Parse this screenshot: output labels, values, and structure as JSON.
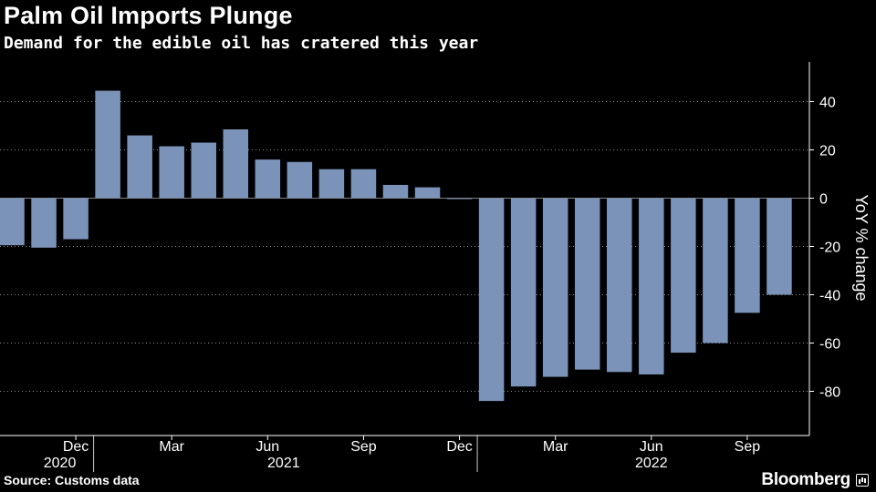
{
  "header": {
    "title": "Palm Oil Imports Plunge",
    "subtitle": "Demand for the edible oil has cratered this year"
  },
  "footer": {
    "source": "Source: Customs data",
    "brand": "Bloomberg"
  },
  "colors": {
    "background": "#000000",
    "bar": "#7b93b8",
    "text": "#ffffff",
    "grid": "#ffffff",
    "axis": "#ffffff"
  },
  "chart_data": {
    "type": "bar",
    "title": "Palm Oil Imports Plunge",
    "subtitle": "Demand for the edible oil has cratered this year",
    "ylabel": "YoY % change",
    "xlabel": "",
    "ylim": [
      -95,
      57
    ],
    "yticks": [
      40,
      20,
      0,
      -20,
      -40,
      -60,
      -80
    ],
    "grid": "horizontal dotted",
    "categories": [
      "Oct 2020",
      "Nov 2020",
      "Dec 2020",
      "Jan 2021",
      "Feb 2021",
      "Mar 2021",
      "Apr 2021",
      "May 2021",
      "Jun 2021",
      "Jul 2021",
      "Aug 2021",
      "Sep 2021",
      "Oct 2021",
      "Nov 2021",
      "Dec 2021",
      "Jan 2022",
      "Feb 2022",
      "Mar 2022",
      "Apr 2022",
      "May 2022",
      "Jun 2022",
      "Jul 2022",
      "Aug 2022",
      "Sep 2022",
      "Oct 2022"
    ],
    "values": [
      -19.5,
      -20.5,
      -17,
      44.5,
      26,
      21.5,
      23,
      28.5,
      16,
      15,
      12,
      12,
      5.5,
      4.5,
      0,
      -84,
      -78,
      -74,
      -71,
      -72,
      -73,
      -64,
      -60,
      -47.5,
      -40
    ],
    "x_month_labels": [
      {
        "label": "Dec",
        "index": 2
      },
      {
        "label": "Mar",
        "index": 5
      },
      {
        "label": "Jun",
        "index": 8
      },
      {
        "label": "Sep",
        "index": 11
      },
      {
        "label": "Dec",
        "index": 14
      },
      {
        "label": "Mar",
        "index": 17
      },
      {
        "label": "Jun",
        "index": 20
      },
      {
        "label": "Sep",
        "index": 23
      }
    ],
    "x_year_labels": [
      {
        "label": "2020",
        "index": 1.5
      },
      {
        "label": "2021",
        "index": 8.5
      },
      {
        "label": "2022",
        "index": 20
      }
    ],
    "year_dividers": [
      2.5,
      14.5
    ]
  }
}
